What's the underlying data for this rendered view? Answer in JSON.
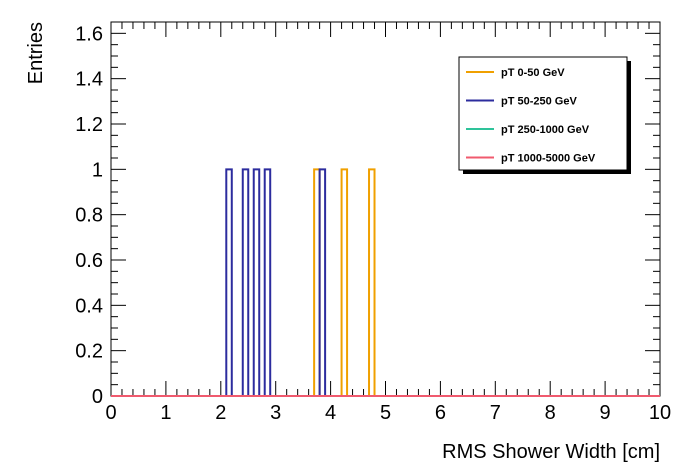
{
  "chart_data": {
    "type": "histogram-step",
    "xlabel": "RMS Shower Width [cm]",
    "ylabel": "Entries",
    "xlim": [
      0,
      10
    ],
    "ylim": [
      0,
      1.65
    ],
    "x_ticks": [
      "0",
      "1",
      "2",
      "3",
      "4",
      "5",
      "6",
      "7",
      "8",
      "9",
      "10"
    ],
    "y_ticks": [
      "0",
      "0.2",
      "0.4",
      "0.6",
      "0.8",
      "1",
      "1.2",
      "1.4",
      "1.6"
    ],
    "bin_width": 0.1,
    "legend_position": "top-right",
    "series": [
      {
        "name": "pT 0-50 GeV",
        "color": "#f0a000",
        "entries": [
          [
            3.7,
            1
          ],
          [
            4.2,
            1
          ],
          [
            4.7,
            1
          ]
        ]
      },
      {
        "name": "pT 50-250 GeV",
        "color": "#2c2c9e",
        "entries": [
          [
            2.1,
            1
          ],
          [
            2.4,
            1
          ],
          [
            2.6,
            1
          ],
          [
            2.8,
            1
          ],
          [
            3.8,
            1
          ]
        ]
      },
      {
        "name": "pT 250-1000 GeV",
        "color": "#2ec39a",
        "entries": []
      },
      {
        "name": "pT 1000-5000 GeV",
        "color": "#f05a6e",
        "entries": []
      }
    ]
  }
}
